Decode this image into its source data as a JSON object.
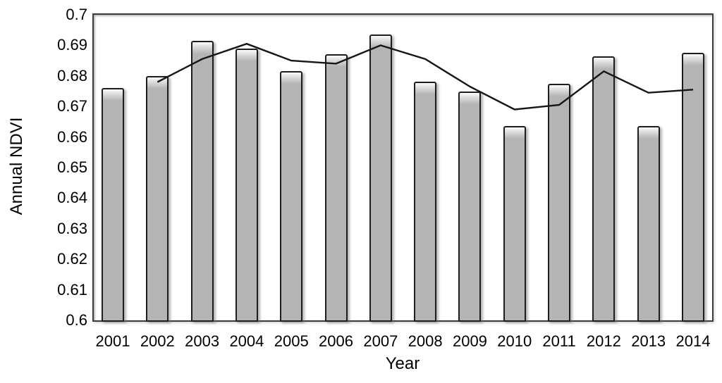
{
  "figure": {
    "background": "#ffffff",
    "colors": {
      "bar_fill": "#b4b4b4",
      "bar_border": "#1d1d1d",
      "bar_gloss_top": "#fbfbfb",
      "line": "#161616",
      "plot_border": "#3c3c3c",
      "text": "#000000"
    }
  },
  "chart_data": {
    "type": "bar",
    "title": "",
    "xlabel": "Year",
    "ylabel": "Annual NDVI",
    "categories": [
      "2001",
      "2002",
      "2003",
      "2004",
      "2005",
      "2006",
      "2007",
      "2008",
      "2009",
      "2010",
      "2011",
      "2012",
      "2013",
      "2014"
    ],
    "series": [
      {
        "name": "annual-ndvi-bars",
        "type": "bar",
        "values": [
          0.676,
          0.68,
          0.6915,
          0.689,
          0.6815,
          0.687,
          0.6935,
          0.678,
          0.675,
          0.6635,
          0.6775,
          0.6865,
          0.6635,
          0.6875
        ]
      },
      {
        "name": "smoothed-trend-line",
        "type": "line",
        "x": [
          "2002",
          "2003",
          "2004",
          "2005",
          "2006",
          "2007",
          "2008",
          "2009",
          "2010",
          "2011",
          "2012",
          "2013",
          "2014"
        ],
        "values": [
          0.678,
          0.6855,
          0.6905,
          0.685,
          0.684,
          0.69,
          0.6855,
          0.6765,
          0.669,
          0.6705,
          0.6815,
          0.6745,
          0.6755
        ]
      }
    ],
    "ylim": [
      0.6,
      0.7
    ],
    "ytick_labels": [
      "0.7",
      "0.69",
      "0.68",
      "0.67",
      "0.66",
      "0.65",
      "0.64",
      "0.63",
      "0.62",
      "0.61",
      "0.6"
    ],
    "ytick_values": [
      0.7,
      0.69,
      0.68,
      0.67,
      0.66,
      0.65,
      0.64,
      0.63,
      0.62,
      0.61,
      0.6
    ],
    "grid": false,
    "legend": "none"
  }
}
